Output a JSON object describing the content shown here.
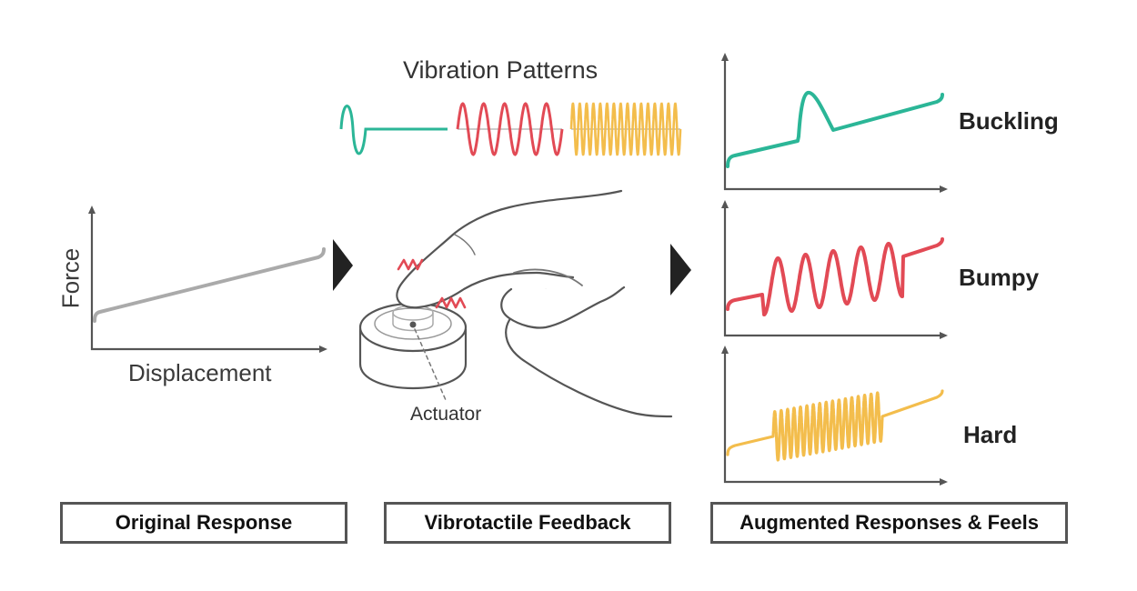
{
  "panels": {
    "original": {
      "y_axis_label": "Force",
      "x_axis_label": "Displacement",
      "caption": "Original Response"
    },
    "vibrotactile": {
      "title": "Vibration Patterns",
      "actuator_label": "Actuator",
      "caption": "Vibrotactile Feedback"
    },
    "augmented": {
      "feels": [
        "Buckling",
        "Bumpy",
        "Hard"
      ],
      "caption": "Augmented Responses & Feels"
    }
  },
  "colors": {
    "teal": "#2bb697",
    "red": "#e24a55",
    "yellow": "#f3bd4c",
    "gray_line": "#aaaaaa",
    "axis": "#555555",
    "arrow": "#222222"
  }
}
